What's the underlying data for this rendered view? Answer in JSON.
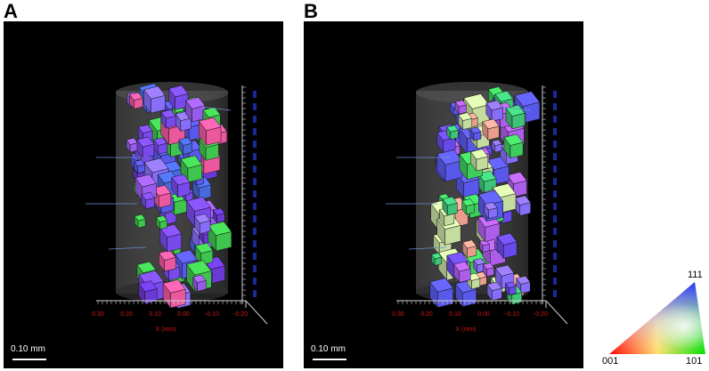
{
  "panels": [
    {
      "letter": "A",
      "scale_bar_label": "0.10 mm",
      "x_ticks": [
        "0.30",
        "0.20",
        "0.10",
        "0.00",
        "-0.10",
        "-0.20"
      ],
      "x_axis_label": "X (mm)"
    },
    {
      "letter": "B",
      "scale_bar_label": "0.10 mm",
      "x_ticks": [
        "0.30",
        "0.20",
        "0.10",
        "0.00",
        "-0.10",
        "-0.20"
      ],
      "x_axis_label": "X (mm)"
    }
  ],
  "ipf_legend": {
    "corner_top": "111",
    "corner_left": "001",
    "corner_right": "101",
    "colors": {
      "001": "#ff0000",
      "101": "#00ff00",
      "111": "#0000ff"
    }
  },
  "colors": {
    "background": "#000000",
    "axis_text": "#d01818",
    "vertical_axis_text": "#1a2a9a"
  }
}
